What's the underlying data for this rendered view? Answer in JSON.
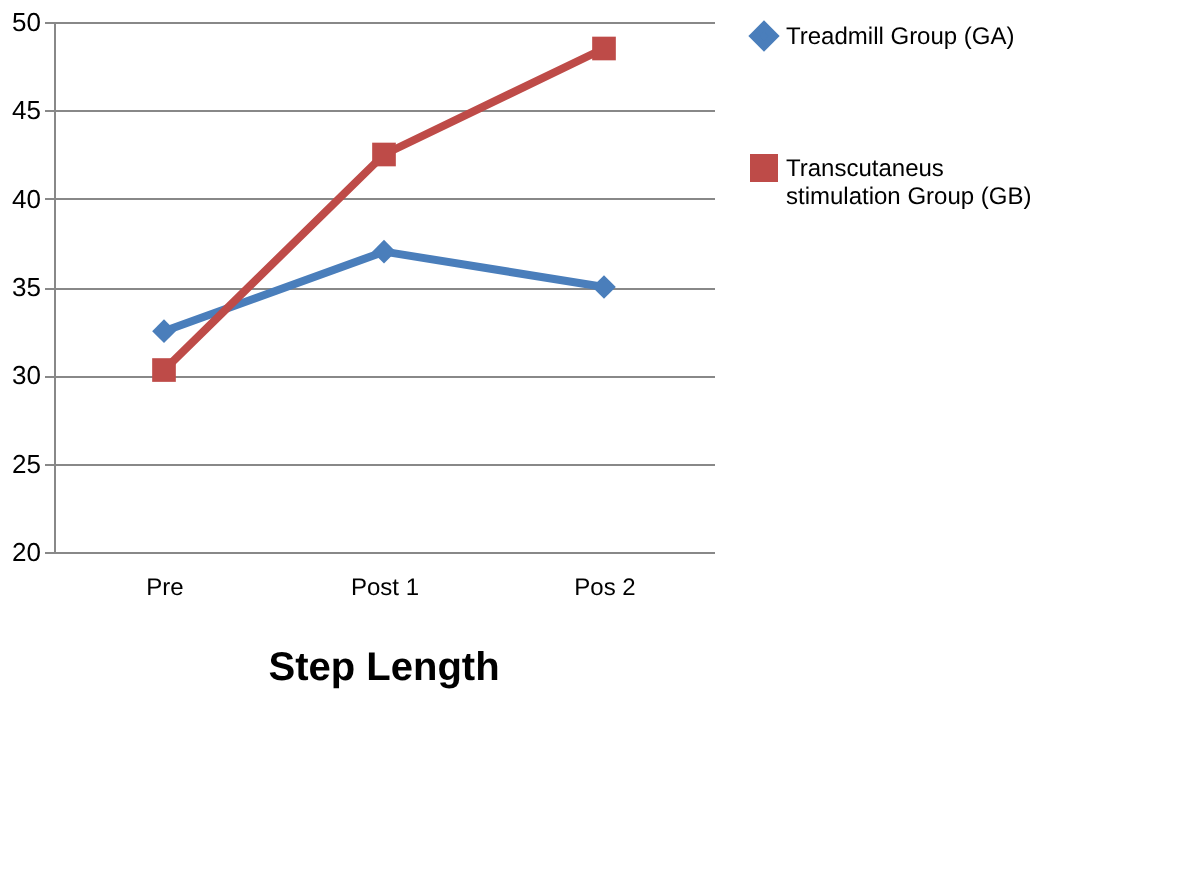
{
  "chart_data": {
    "type": "line",
    "title": "Step Length",
    "categories": [
      "Pre",
      "Post 1",
      "Pos 2"
    ],
    "series": [
      {
        "name": "Treadmill Group (GA)",
        "color": "#4a7ebb",
        "marker": "diamond",
        "values": [
          32.5,
          37,
          35
        ]
      },
      {
        "name": "Transcutaneus stimulation Group (GB)",
        "color": "#be4b48",
        "marker": "square",
        "values": [
          30.3,
          42.5,
          48.5
        ]
      }
    ],
    "ylim": [
      20,
      50
    ],
    "yticks": [
      20,
      25,
      30,
      35,
      40,
      45,
      50
    ],
    "grid": "y",
    "legend": "right",
    "line_style": "solid"
  }
}
